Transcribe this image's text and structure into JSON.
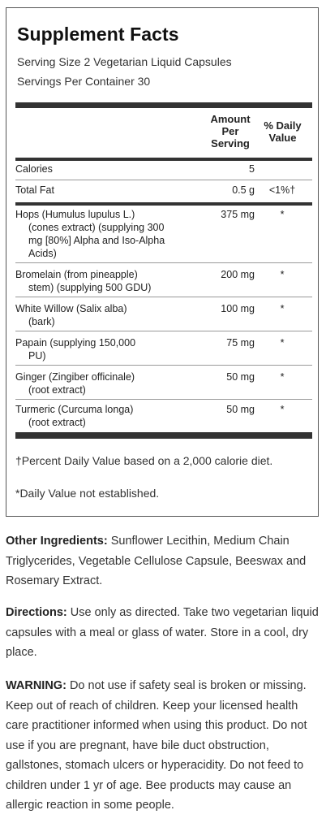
{
  "facts": {
    "title": "Supplement Facts",
    "serving_size": "Serving Size 2 Vegetarian Liquid Capsules",
    "servings_per_container": "Servings Per Container 30",
    "col_amount": [
      "Amount",
      "Per",
      "Serving"
    ],
    "col_dv": [
      "% Daily",
      "Value"
    ],
    "calories": {
      "name": "Calories",
      "amount": "5",
      "dv": ""
    },
    "total_fat": {
      "name": "Total Fat",
      "amount": "0.5 g",
      "dv": "<1%†"
    },
    "ingredients": [
      {
        "lines": [
          "Hops (Humulus lupulus L.)",
          "(cones extract) (supplying 300",
          "mg [80%] Alpha and Iso-Alpha",
          "Acids)"
        ],
        "amount": "375 mg",
        "dv": "*"
      },
      {
        "lines": [
          "Bromelain (from pineapple)",
          "stem) (supplying 500 GDU)"
        ],
        "amount": "200 mg",
        "dv": "*"
      },
      {
        "lines": [
          "White Willow (Salix alba)",
          "(bark)"
        ],
        "amount": "100 mg",
        "dv": "*"
      },
      {
        "lines": [
          "Papain (supplying 150,000",
          "PU)"
        ],
        "amount": "75 mg",
        "dv": "*"
      },
      {
        "lines": [
          "Ginger (Zingiber officinale)",
          "(root extract)"
        ],
        "amount": "50 mg",
        "dv": "*"
      },
      {
        "lines": [
          "Turmeric (Curcuma longa)",
          "(root extract)"
        ],
        "amount": "50 mg",
        "dv": "*"
      }
    ],
    "footnote_dv": "†Percent Daily Value based on a 2,000 calorie diet.",
    "footnote_star": "*Daily Value not established."
  },
  "other_ingredients": {
    "label": "Other Ingredients:",
    "text": "Sunflower Lecithin, Medium Chain Triglycerides, Vegetable Cellulose Capsule, Beeswax and Rosemary Extract."
  },
  "directions": {
    "label": "Directions:",
    "text": "Use only as directed. Take two vegetarian liquid capsules with a meal or glass of water. Store in a cool, dry place."
  },
  "warning": {
    "label": "WARNING:",
    "text": "Do not use if safety seal is broken or missing. Keep out of reach of children. Keep your licensed health care practitioner informed when using this product. Do not use if you are pregnant, have bile duct obstruction, gallstones, stomach ulcers or hyperacidity. Do not feed to children under 1 yr of age. Bee products may cause an allergic reaction in some people."
  }
}
